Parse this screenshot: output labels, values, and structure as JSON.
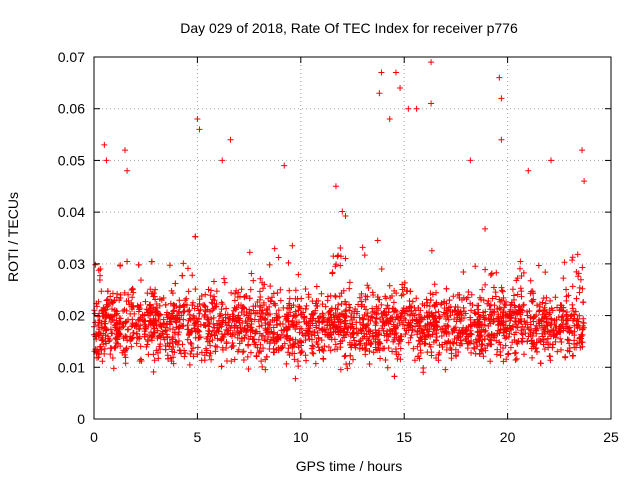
{
  "chart_data": {
    "type": "scatter",
    "title": "Day 029 of 2018, Rate Of TEC Index for receiver p776",
    "xlabel": "GPS time / hours",
    "ylabel": "ROTI / TECUs",
    "xlim": [
      0,
      25
    ],
    "ylim": [
      0,
      0.07
    ],
    "x_ticks": [
      0,
      5,
      10,
      15,
      20,
      25
    ],
    "x_tick_labels": [
      "0",
      "5",
      "10",
      "15",
      "20",
      "25"
    ],
    "y_ticks": [
      0,
      0.01,
      0.02,
      0.03,
      0.04,
      0.05,
      0.06,
      0.07
    ],
    "y_tick_labels": [
      "0",
      "0.01",
      "0.02",
      "0.03",
      "0.04",
      "0.05",
      "0.06",
      "0.07"
    ],
    "grid": true,
    "marker": "+",
    "marker_color": "#ff0000",
    "series": [
      {
        "name": "ROTI",
        "x_range": [
          0,
          23.7
        ],
        "typical_range": [
          0.007,
          0.03
        ],
        "median": 0.018,
        "spike_points": [
          {
            "x": 0.5,
            "y": 0.053
          },
          {
            "x": 0.6,
            "y": 0.05
          },
          {
            "x": 1.5,
            "y": 0.052
          },
          {
            "x": 1.6,
            "y": 0.048
          },
          {
            "x": 5.0,
            "y": 0.058
          },
          {
            "x": 5.1,
            "y": 0.056
          },
          {
            "x": 6.6,
            "y": 0.054
          },
          {
            "x": 6.2,
            "y": 0.05
          },
          {
            "x": 9.2,
            "y": 0.049
          },
          {
            "x": 11.7,
            "y": 0.045
          },
          {
            "x": 13.8,
            "y": 0.063
          },
          {
            "x": 13.9,
            "y": 0.067
          },
          {
            "x": 14.3,
            "y": 0.058
          },
          {
            "x": 14.6,
            "y": 0.067
          },
          {
            "x": 14.8,
            "y": 0.064
          },
          {
            "x": 15.2,
            "y": 0.06
          },
          {
            "x": 15.6,
            "y": 0.06
          },
          {
            "x": 16.3,
            "y": 0.069
          },
          {
            "x": 16.3,
            "y": 0.061
          },
          {
            "x": 18.2,
            "y": 0.05
          },
          {
            "x": 19.6,
            "y": 0.066
          },
          {
            "x": 19.7,
            "y": 0.062
          },
          {
            "x": 19.7,
            "y": 0.054
          },
          {
            "x": 21.0,
            "y": 0.048
          },
          {
            "x": 22.1,
            "y": 0.05
          },
          {
            "x": 23.6,
            "y": 0.052
          },
          {
            "x": 23.7,
            "y": 0.046
          }
        ]
      }
    ]
  }
}
